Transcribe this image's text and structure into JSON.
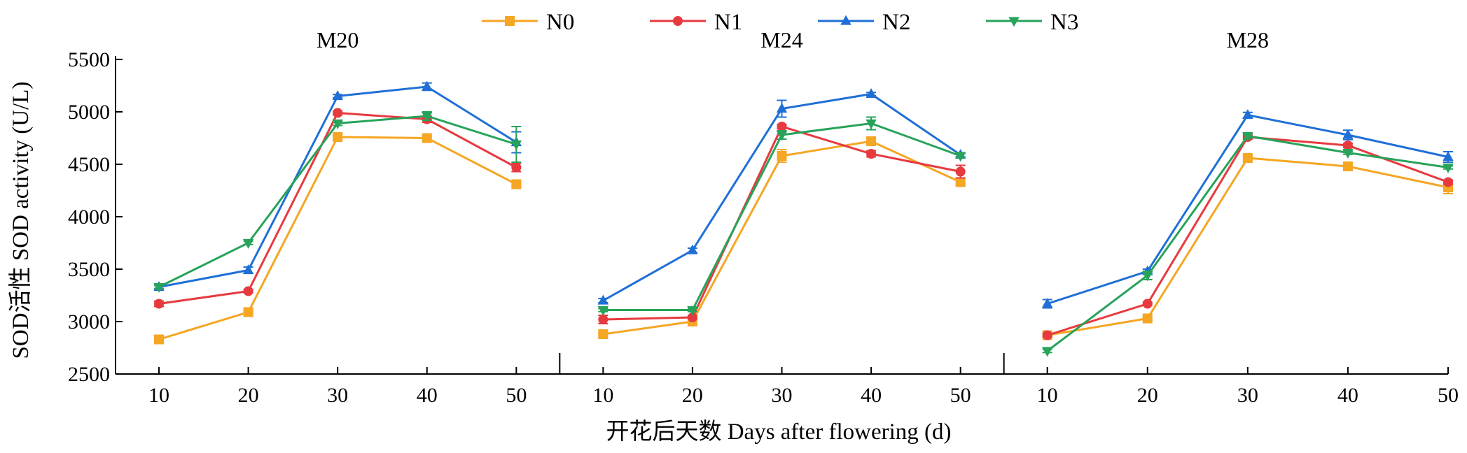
{
  "chart_data": {
    "type": "line",
    "title": "",
    "xlabel": "开花后天数 Days after flowering (d)",
    "ylabel": "SOD活性 SOD activity (U/L)",
    "ylim": [
      2500,
      5500
    ],
    "yticks": [
      2500,
      3000,
      3500,
      4000,
      4500,
      5000,
      5500
    ],
    "x": [
      10,
      20,
      30,
      40,
      50
    ],
    "grid": false,
    "legend_position": "top-center",
    "error_bars": true,
    "series_legend": [
      {
        "name": "N0",
        "color": "#f5a623",
        "marker": "square"
      },
      {
        "name": "N1",
        "color": "#e63a3f",
        "marker": "circle"
      },
      {
        "name": "N2",
        "color": "#1f6fd6",
        "marker": "triangle-up"
      },
      {
        "name": "N3",
        "color": "#27a35a",
        "marker": "triangle-down"
      }
    ],
    "panels": [
      {
        "title": "M20",
        "series": [
          {
            "name": "N0",
            "values": [
              2830,
              3090,
              4760,
              4750,
              4310
            ],
            "errors": [
              15,
              15,
              20,
              20,
              20
            ]
          },
          {
            "name": "N1",
            "values": [
              3170,
              3290,
              4990,
              4930,
              4470
            ],
            "errors": [
              25,
              15,
              20,
              30,
              40
            ]
          },
          {
            "name": "N2",
            "values": [
              3330,
              3490,
              5150,
              5240,
              4710
            ],
            "errors": [
              15,
              30,
              15,
              35,
              100
            ]
          },
          {
            "name": "N3",
            "values": [
              3330,
              3750,
              4890,
              4960,
              4690
            ],
            "errors": [
              15,
              15,
              20,
              40,
              170
            ]
          }
        ]
      },
      {
        "title": "M24",
        "series": [
          {
            "name": "N0",
            "values": [
              2880,
              3000,
              4580,
              4720,
              4330
            ],
            "errors": [
              15,
              15,
              60,
              25,
              30
            ]
          },
          {
            "name": "N1",
            "values": [
              3020,
              3040,
              4860,
              4600,
              4430
            ],
            "errors": [
              40,
              15,
              20,
              30,
              60
            ]
          },
          {
            "name": "N2",
            "values": [
              3200,
              3680,
              5030,
              5170,
              4590
            ],
            "errors": [
              20,
              20,
              80,
              15,
              20
            ]
          },
          {
            "name": "N3",
            "values": [
              3110,
              3110,
              4780,
              4890,
              4580
            ],
            "errors": [
              15,
              15,
              40,
              60,
              20
            ]
          }
        ]
      },
      {
        "title": "M28",
        "series": [
          {
            "name": "N0",
            "values": [
              2870,
              3030,
              4560,
              4480,
              4280
            ],
            "errors": [
              15,
              15,
              20,
              40,
              60
            ]
          },
          {
            "name": "N1",
            "values": [
              2870,
              3170,
              4760,
              4680,
              4330
            ],
            "errors": [
              15,
              15,
              20,
              20,
              20
            ]
          },
          {
            "name": "N2",
            "values": [
              3170,
              3480,
              4970,
              4780,
              4570
            ],
            "errors": [
              40,
              20,
              25,
              45,
              50
            ]
          },
          {
            "name": "N3",
            "values": [
              2720,
              3440,
              4770,
              4610,
              4470
            ],
            "errors": [
              15,
              40,
              20,
              15,
              15
            ]
          }
        ]
      }
    ]
  }
}
